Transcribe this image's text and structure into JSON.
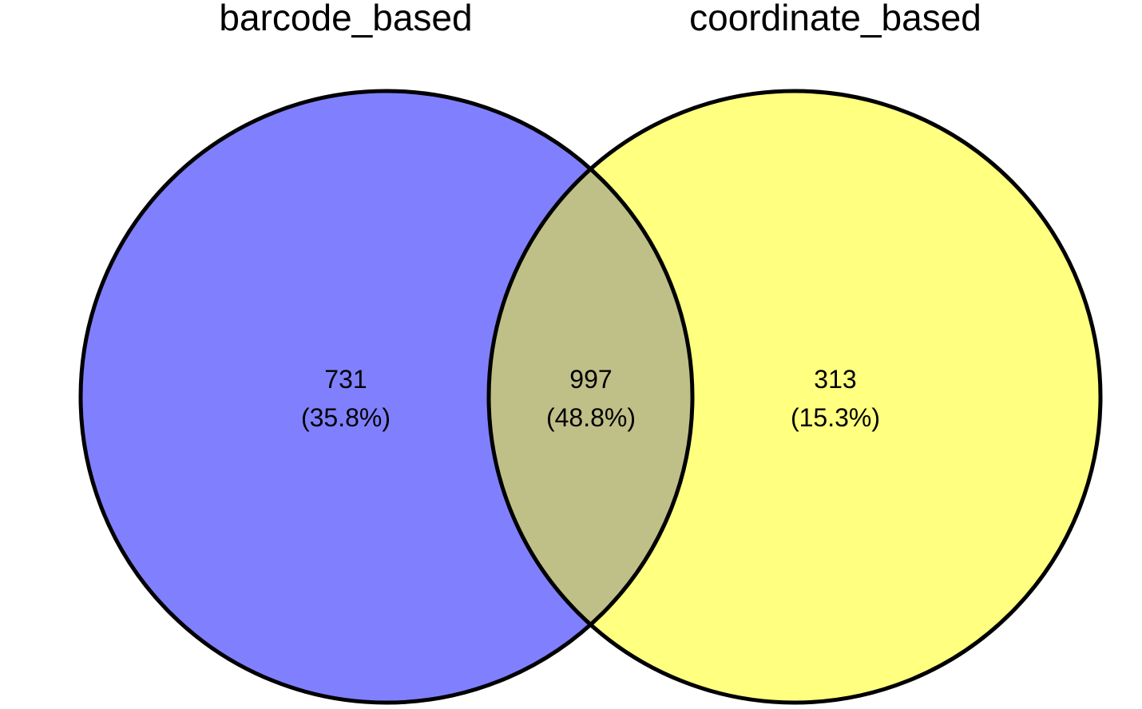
{
  "sets": [
    {
      "name": "barcode_based",
      "color": "#8080FF"
    },
    {
      "name": "coordinate_based",
      "color": "#FFFF80"
    }
  ],
  "overlap_color": "#BFBF88",
  "outline_color": "#000000",
  "regions": {
    "left_only": {
      "count": "731",
      "percent": "(35.8%)"
    },
    "intersection": {
      "count": "997",
      "percent": "(48.8%)"
    },
    "right_only": {
      "count": "313",
      "percent": "(15.3%)"
    }
  }
}
